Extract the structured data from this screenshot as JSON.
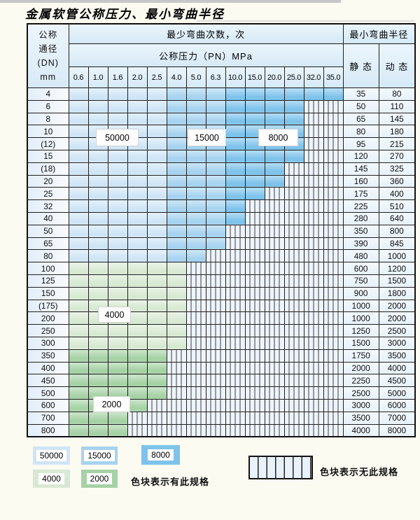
{
  "title": "金属软管公称压力、最小弯曲半径",
  "colors": {
    "b50000": "#cfe5f6",
    "b15000": "#a6d3ef",
    "b8000": "#7ec3eb",
    "g4000": "#d8e9d3",
    "g2000": "#a6d2a6",
    "nospec_bg": "#eef4fb",
    "grid": "#1f1f1f"
  },
  "table": {
    "header": {
      "dn_lines": [
        "公称",
        "通径",
        "(DN)",
        "mm"
      ],
      "bend_times_label": "最少弯曲次数，次",
      "pressure_label": "公称压力（PN）MPa",
      "pressure_columns": [
        "0.6",
        "1.0",
        "1.6",
        "2.0",
        "2.5",
        "4.0",
        "5.0",
        "6.3",
        "10.0",
        "15.0",
        "20.0",
        "25.0",
        "32.0",
        "35.0"
      ],
      "radius_label": "最小弯曲半径",
      "static_label": "静 态",
      "dynamic_label": "动 态"
    },
    "blue_shades": {
      "light_cols": 5,
      "medium_cols": 8
    },
    "rows": [
      {
        "dn": "4",
        "band": "blue",
        "colored": 14,
        "static": "35",
        "dynamic": "80"
      },
      {
        "dn": "6",
        "band": "blue",
        "colored": 12,
        "static": "50",
        "dynamic": "110"
      },
      {
        "dn": "8",
        "band": "blue",
        "colored": 12,
        "static": "65",
        "dynamic": "145"
      },
      {
        "dn": "10",
        "band": "blue",
        "colored": 12,
        "static": "80",
        "dynamic": "180"
      },
      {
        "dn": "(12)",
        "band": "blue",
        "colored": 12,
        "static": "95",
        "dynamic": "215"
      },
      {
        "dn": "15",
        "band": "blue",
        "colored": 12,
        "static": "120",
        "dynamic": "270"
      },
      {
        "dn": "(18)",
        "band": "blue",
        "colored": 11,
        "static": "145",
        "dynamic": "325"
      },
      {
        "dn": "20",
        "band": "blue",
        "colored": 11,
        "static": "160",
        "dynamic": "360"
      },
      {
        "dn": "25",
        "band": "blue",
        "colored": 10,
        "static": "175",
        "dynamic": "400"
      },
      {
        "dn": "32",
        "band": "blue",
        "colored": 9,
        "static": "225",
        "dynamic": "510"
      },
      {
        "dn": "40",
        "band": "blue",
        "colored": 9,
        "static": "280",
        "dynamic": "640"
      },
      {
        "dn": "50",
        "band": "blue",
        "colored": 8,
        "static": "350",
        "dynamic": "800"
      },
      {
        "dn": "65",
        "band": "blue",
        "colored": 8,
        "static": "390",
        "dynamic": "845"
      },
      {
        "dn": "80",
        "band": "blue",
        "colored": 7,
        "static": "480",
        "dynamic": "1000"
      },
      {
        "dn": "100",
        "band": "g4000",
        "colored": 6,
        "static": "600",
        "dynamic": "1200"
      },
      {
        "dn": "125",
        "band": "g4000",
        "colored": 6,
        "static": "750",
        "dynamic": "1500"
      },
      {
        "dn": "150",
        "band": "g4000",
        "colored": 6,
        "static": "900",
        "dynamic": "1800"
      },
      {
        "dn": "(175)",
        "band": "g4000",
        "colored": 6,
        "static": "1000",
        "dynamic": "2000"
      },
      {
        "dn": "200",
        "band": "g4000",
        "colored": 6,
        "static": "1000",
        "dynamic": "2000"
      },
      {
        "dn": "250",
        "band": "g4000",
        "colored": 6,
        "static": "1250",
        "dynamic": "2500"
      },
      {
        "dn": "300",
        "band": "g4000",
        "colored": 6,
        "static": "1500",
        "dynamic": "3000"
      },
      {
        "dn": "350",
        "band": "g2000",
        "colored": 5,
        "static": "1750",
        "dynamic": "3500"
      },
      {
        "dn": "400",
        "band": "g2000",
        "colored": 5,
        "static": "2000",
        "dynamic": "4000"
      },
      {
        "dn": "450",
        "band": "g2000",
        "colored": 5,
        "static": "2250",
        "dynamic": "4500"
      },
      {
        "dn": "500",
        "band": "g2000",
        "colored": 5,
        "static": "2500",
        "dynamic": "5000"
      },
      {
        "dn": "600",
        "band": "g2000",
        "colored": 4,
        "static": "3000",
        "dynamic": "6000"
      },
      {
        "dn": "700",
        "band": "g2000",
        "colored": 3,
        "static": "3500",
        "dynamic": "7000"
      },
      {
        "dn": "800",
        "band": "g2000",
        "colored": 3,
        "static": "4000",
        "dynamic": "8000"
      }
    ]
  },
  "overlays": {
    "b50000": "50000",
    "b15000": "15000",
    "b8000": "8000",
    "b4000": "4000",
    "b2000": "2000"
  },
  "legend": {
    "blocks": [
      {
        "label": "50000",
        "color": "#cfe5f6"
      },
      {
        "label": "15000",
        "color": "#a6d3ef"
      },
      {
        "label": "8000",
        "color": "#7ec3eb"
      },
      {
        "label": "4000",
        "color": "#d8e9d3"
      },
      {
        "label": "2000",
        "color": "#a6d2a6"
      }
    ],
    "has_spec_text": "色块表示有此规格",
    "no_spec_text": "色块表示无此规格"
  }
}
